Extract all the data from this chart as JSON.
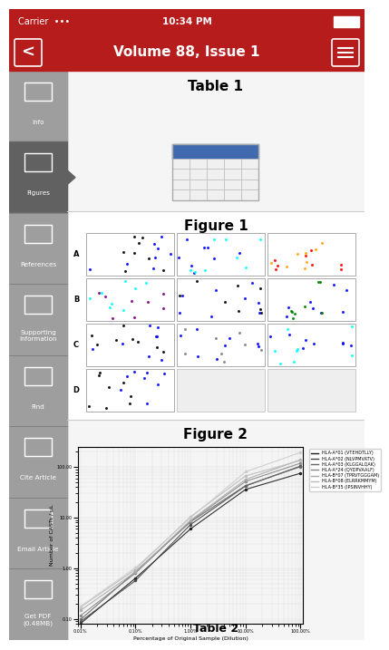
{
  "bg_color": "#ffffff",
  "status_bar_bg": "#b71c1c",
  "nav_bar_bg": "#b71c1c",
  "nav_title": "Volume 88, Issue 1",
  "sidebar_bg": "#9e9e9e",
  "sidebar_active_bg": "#616161",
  "sidebar_items": [
    "Info",
    "Figures",
    "References",
    "Supporting\nInformation",
    "Find",
    "Cite Article",
    "Email Article",
    "Get PDF\n(0.48MB)"
  ],
  "content_bg": "#ffffff",
  "section1_title": "Table 1",
  "section2_title": "Figure 1",
  "section3_title": "Figure 2",
  "figure2_legend": [
    "HLA-A*01 (VTEHDTLLY)",
    "HLA-A*02 (NLVPMVATV)",
    "HLA-A*03 (KLGGALQAK)",
    "HLA-A*24 (QYDPVAALF)",
    "HLA-B*07 (TPRVTGGGAM)",
    "HLA-B*08 (ELRRKMMYM)",
    "HLA-B*35 (IPSINVHHY)"
  ],
  "line_colors": [
    "#1a1a1a",
    "#444444",
    "#666666",
    "#888888",
    "#aaaaaa",
    "#bbbbbb",
    "#cccccc"
  ],
  "fig2_ylabel": "Number of CASTs / μL",
  "fig2_xlabel": "Percentage of Original Sample (Dilution)",
  "fig2_yticks": [
    "0.10",
    "1.00",
    "10.00",
    "100.00"
  ],
  "fig2_xticks": [
    "0.01%",
    "0.10%",
    "1.00%",
    "10.00%",
    "100.00%"
  ],
  "table2_label": "Table 2"
}
